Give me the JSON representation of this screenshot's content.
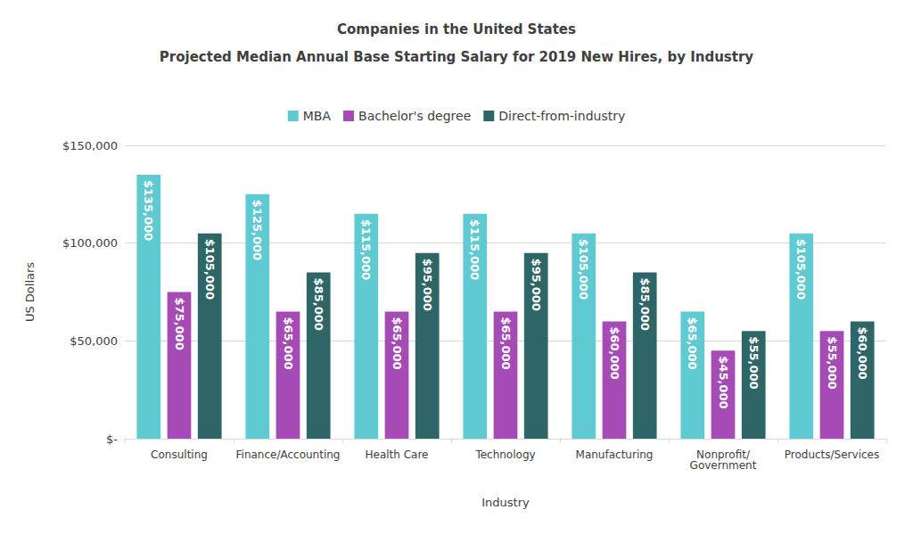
{
  "chart_data": {
    "type": "bar",
    "title": "Companies in the United States",
    "subtitle": "Projected Median Annual Base Starting Salary for 2019 New Hires, by Industry",
    "x_label": "Industry",
    "y_label": "US Dollars",
    "categories": [
      "Consulting",
      "Finance/Accounting",
      "Health Care",
      "Technology",
      "Manufacturing",
      "Nonprofit/\nGovernment",
      "Products/Services"
    ],
    "series": [
      {
        "name": "MBA",
        "color": "#5fcad2",
        "values": [
          135000,
          125000,
          115000,
          115000,
          105000,
          65000,
          105000
        ],
        "value_labels": [
          "$135,000",
          "$125,000",
          "$115,000",
          "$115,000",
          "$105,000",
          "$65,000",
          "$105,000"
        ]
      },
      {
        "name": "Bachelor's degree",
        "color": "#a64bb6",
        "values": [
          75000,
          65000,
          65000,
          65000,
          60000,
          45000,
          55000
        ],
        "value_labels": [
          "$75,000",
          "$65,000",
          "$65,000",
          "$65,000",
          "$60,000",
          "$45,000",
          "$55,000"
        ]
      },
      {
        "name": "Direct-from-industry",
        "color": "#2e6668",
        "values": [
          105000,
          85000,
          95000,
          95000,
          85000,
          55000,
          60000
        ],
        "value_labels": [
          "$105,000",
          "$85,000",
          "$95,000",
          "$95,000",
          "$85,000",
          "$55,000",
          "$60,000"
        ]
      }
    ],
    "ylim": [
      0,
      150000
    ],
    "yticks": [
      {
        "value": 0,
        "label": "$-"
      },
      {
        "value": 50000,
        "label": "$50,000"
      },
      {
        "value": 100000,
        "label": "$100,000"
      },
      {
        "value": 150000,
        "label": "$150,000"
      }
    ],
    "grid": true,
    "legend": "top",
    "data_labels": true
  }
}
